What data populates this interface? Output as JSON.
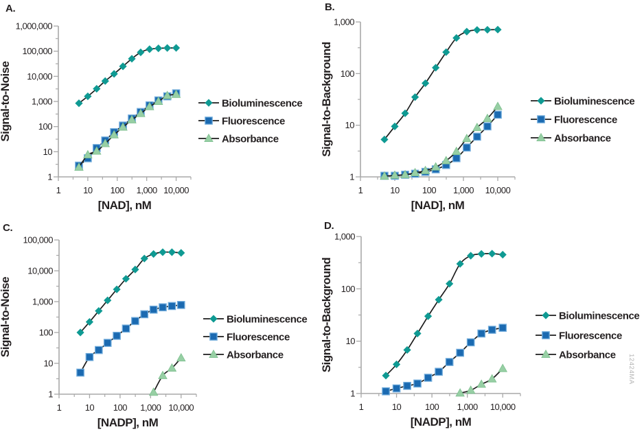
{
  "figure": {
    "watermark": "12424MA",
    "background": "#ffffff",
    "colors": {
      "line": "#1c1c1c",
      "axis": "#a8a8a8",
      "text": "#231f20",
      "watermark": "#b5b5b5",
      "bioluminescence": "#0f9a93",
      "fluorescence": "#1b6ab1",
      "fluorescence_border": "#74aedd",
      "absorbance": "#97cfa4",
      "absorbance_border": "#7cbf8e"
    }
  },
  "chart_data": [
    {
      "type": "line",
      "panel": "A.",
      "xlabel": "[NAD], nM",
      "ylabel": "Signal-to-Noise",
      "xscale": "log",
      "yscale": "log",
      "xlim": [
        1,
        31623
      ],
      "ylim": [
        1,
        1000000
      ],
      "xticks": [
        "1",
        "10",
        "100",
        "1,000",
        "10,000"
      ],
      "yticks": [
        "1",
        "10",
        "100",
        "1,000",
        "10,000",
        "100,000",
        "1,000,000"
      ],
      "grid": false,
      "legend_position": "right",
      "series": [
        {
          "name": "Bioluminescence",
          "marker": "diamond",
          "color": "#0f9a93",
          "x": [
            5,
            10,
            20,
            39,
            78,
            156,
            313,
            625,
            1250,
            2500,
            5000,
            10000
          ],
          "y": [
            850,
            1600,
            3200,
            6500,
            12500,
            25000,
            50000,
            90000,
            120000,
            130000,
            134000,
            135000
          ]
        },
        {
          "name": "Fluorescence",
          "marker": "square",
          "color": "#1b6ab1",
          "x": [
            5,
            10,
            20,
            39,
            78,
            156,
            313,
            625,
            1250,
            2500,
            5000,
            10000
          ],
          "y": [
            2.8,
            5.5,
            14,
            28,
            60,
            110,
            210,
            380,
            700,
            1100,
            1600,
            2100
          ]
        },
        {
          "name": "Absorbance",
          "marker": "triangle",
          "color": "#97cfa4",
          "x": [
            5,
            10,
            20,
            39,
            78,
            156,
            313,
            625,
            1250,
            2500,
            5000,
            10000
          ],
          "y": [
            2.4,
            7.5,
            10.5,
            21,
            47,
            95,
            185,
            330,
            620,
            1000,
            1700,
            1900
          ]
        }
      ]
    },
    {
      "type": "line",
      "panel": "B.",
      "xlabel": "[NAD], nM",
      "ylabel": "Signal-to-Background",
      "xscale": "log",
      "yscale": "log",
      "xlim": [
        1,
        31623
      ],
      "ylim": [
        1,
        1000
      ],
      "xticks": [
        "1",
        "10",
        "100",
        "1,000",
        "10,000"
      ],
      "yticks": [
        "1",
        "10",
        "100",
        "1,000"
      ],
      "grid": false,
      "legend_position": "right",
      "series": [
        {
          "name": "Bioluminescence",
          "marker": "diamond",
          "color": "#0f9a93",
          "x": [
            5,
            10,
            20,
            39,
            78,
            156,
            313,
            625,
            1250,
            2500,
            5000,
            10000
          ],
          "y": [
            5.3,
            9.5,
            17,
            35,
            65,
            130,
            260,
            490,
            650,
            700,
            705,
            710
          ]
        },
        {
          "name": "Fluorescence",
          "marker": "square",
          "color": "#1b6ab1",
          "x": [
            5,
            10,
            20,
            39,
            78,
            156,
            313,
            625,
            1250,
            2500,
            5000,
            10000
          ],
          "y": [
            1.05,
            1.05,
            1.1,
            1.15,
            1.25,
            1.4,
            1.7,
            2.3,
            3.7,
            6,
            9.5,
            16
          ]
        },
        {
          "name": "Absorbance",
          "marker": "triangle",
          "color": "#97cfa4",
          "x": [
            5,
            10,
            20,
            39,
            78,
            156,
            313,
            625,
            1250,
            2500,
            5000,
            10000
          ],
          "y": [
            1.03,
            1.07,
            1.1,
            1.2,
            1.32,
            1.55,
            2.05,
            3.1,
            5.5,
            9,
            13.5,
            23
          ]
        }
      ]
    },
    {
      "type": "line",
      "panel": "C.",
      "xlabel": "[NADP], nM",
      "ylabel": "Signal-to-Noise",
      "xscale": "log",
      "yscale": "log",
      "xlim": [
        1,
        31623
      ],
      "ylim": [
        1,
        100000
      ],
      "xticks": [
        "1",
        "10",
        "100",
        "1,000",
        "10,000"
      ],
      "yticks": [
        "1",
        "10",
        "100",
        "1,000",
        "10,000",
        "100,000"
      ],
      "grid": false,
      "legend_position": "right",
      "series": [
        {
          "name": "Bioluminescence",
          "marker": "diamond",
          "color": "#0f9a93",
          "x": [
            5,
            10,
            20,
            39,
            78,
            156,
            313,
            625,
            1250,
            2500,
            5000,
            10000
          ],
          "y": [
            100,
            220,
            500,
            1100,
            2500,
            5500,
            11000,
            25000,
            35000,
            40000,
            40000,
            38000
          ]
        },
        {
          "name": "Fluorescence",
          "marker": "square",
          "color": "#1b6ab1",
          "x": [
            5,
            10,
            20,
            39,
            78,
            156,
            313,
            625,
            1250,
            2500,
            5000,
            10000
          ],
          "y": [
            5,
            16,
            27,
            46,
            78,
            134,
            235,
            390,
            550,
            655,
            720,
            780
          ]
        },
        {
          "name": "Absorbance",
          "marker": "triangle",
          "color": "#97cfa4",
          "x": [
            1250,
            2500,
            5000,
            10000
          ],
          "y": [
            1.15,
            4,
            7,
            15
          ]
        }
      ]
    },
    {
      "type": "line",
      "panel": "D.",
      "xlabel": "[NADP], nM",
      "ylabel": "Signal-to-Background",
      "xscale": "log",
      "yscale": "log",
      "xlim": [
        1,
        31623
      ],
      "ylim": [
        1,
        1000
      ],
      "xticks": [
        "1",
        "10",
        "100",
        "1,000",
        "10,000"
      ],
      "yticks": [
        "1",
        "10",
        "100",
        "1,000"
      ],
      "grid": false,
      "legend_position": "right",
      "series": [
        {
          "name": "Bioluminescence",
          "marker": "diamond",
          "color": "#0f9a93",
          "x": [
            5,
            10,
            20,
            39,
            78,
            156,
            313,
            625,
            1250,
            2500,
            5000,
            10000
          ],
          "y": [
            2.2,
            3.6,
            6.8,
            14,
            30,
            62,
            125,
            300,
            430,
            465,
            470,
            450
          ]
        },
        {
          "name": "Fluorescence",
          "marker": "square",
          "color": "#1b6ab1",
          "x": [
            5,
            10,
            20,
            39,
            78,
            156,
            313,
            625,
            1250,
            2500,
            5000,
            10000
          ],
          "y": [
            1.1,
            1.25,
            1.4,
            1.55,
            2,
            2.6,
            4,
            6,
            9.5,
            14,
            16.5,
            18
          ]
        },
        {
          "name": "Absorbance",
          "marker": "triangle",
          "color": "#97cfa4",
          "x": [
            625,
            1250,
            2500,
            5000,
            10000
          ],
          "y": [
            1.02,
            1.15,
            1.5,
            1.9,
            3
          ]
        }
      ]
    }
  ]
}
